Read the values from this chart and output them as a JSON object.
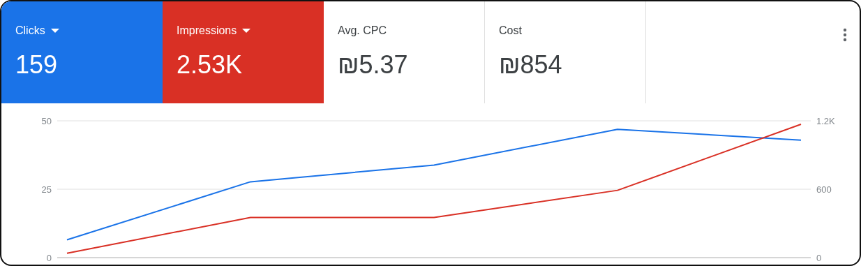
{
  "chart_data": {
    "type": "line",
    "categories": [
      null,
      null,
      null,
      null,
      null
    ],
    "series": [
      {
        "color": "#1a73e8",
        "values": [
          6.5,
          27.7,
          33.8,
          46.9,
          42.9
        ]
      },
      {
        "color": "#d93025",
        "axis": "y2",
        "values": [
          38,
          352,
          352,
          590,
          1169
        ]
      }
    ],
    "annotations": [
      "Clicks",
      "159",
      "Impressions",
      "2.53K",
      "Avg. CPC",
      "₪5.37",
      "Cost",
      "₪854"
    ],
    "ylim": [
      0,
      50
    ],
    "yticks": [
      0,
      25,
      50
    ],
    "y2lim": [
      0,
      1200
    ],
    "y2ticks": [
      0,
      600,
      {
        "value": 1200,
        "label": "1.2K"
      }
    ],
    "grid": "y",
    "marker": "none",
    "line_style": "solid"
  }
}
